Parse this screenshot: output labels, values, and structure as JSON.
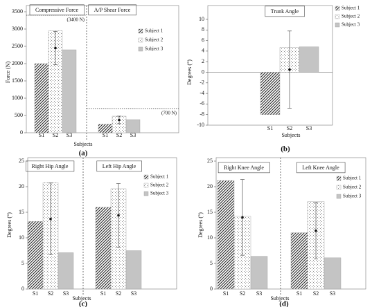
{
  "chart_data": [
    {
      "type": "bar",
      "label": "(a)",
      "y_label": "Force (N)",
      "x_label": "Subjects",
      "ylim": [
        0,
        3500
      ],
      "yticks": [
        0,
        500,
        1000,
        1500,
        2000,
        2500,
        3000,
        3500
      ],
      "legend": [
        {
          "name": "Subject 1",
          "color": "#222222",
          "fill": "hatch"
        },
        {
          "name": "Subject 2",
          "color": "#888888",
          "fill": "dots"
        },
        {
          "name": "Subject 3",
          "color": "#c4c4c4",
          "fill": "solid"
        }
      ],
      "groups": [
        {
          "title": "Compressive Force",
          "categories": [
            "S1",
            "S2",
            "S3"
          ],
          "values": [
            2000,
            2950,
            2400
          ],
          "mean": 2450,
          "error": 480,
          "reference": {
            "value": 3400,
            "label": "(3400 N)"
          }
        },
        {
          "title": "A/P Shear Force",
          "categories": [
            "S1",
            "S2",
            "S3"
          ],
          "values": [
            250,
            480,
            380
          ],
          "mean": 370,
          "error": 110,
          "reference": {
            "value": 700,
            "label": "(700 N)"
          }
        }
      ]
    },
    {
      "type": "bar",
      "label": "(b)",
      "y_label": "Degrees (°)",
      "x_label": "Subjects",
      "ylim": [
        -10,
        10
      ],
      "yticks": [
        -10,
        -8,
        -6,
        -4,
        -2,
        0,
        2,
        4,
        6,
        8,
        10
      ],
      "legend": [
        {
          "name": "Subject 1",
          "color": "#222222",
          "fill": "hatch"
        },
        {
          "name": "Subject 2",
          "color": "#888888",
          "fill": "dots"
        },
        {
          "name": "Subject 3",
          "color": "#c4c4c4",
          "fill": "solid"
        }
      ],
      "groups": [
        {
          "title": "Trunk Angle",
          "categories": [
            "S1",
            "S2",
            "S3"
          ],
          "values": [
            -8,
            4.7,
            4.8
          ],
          "mean": 0.5,
          "error": 7.3
        }
      ]
    },
    {
      "type": "bar",
      "label": "(c)",
      "y_label": "Degrees (°)",
      "x_label": "Subjects",
      "ylim": [
        0,
        25
      ],
      "yticks": [
        0,
        5,
        10,
        15,
        20,
        25
      ],
      "legend": [
        {
          "name": "Subject 1",
          "color": "#222222",
          "fill": "hatch"
        },
        {
          "name": "Subject 2",
          "color": "#888888",
          "fill": "dots"
        },
        {
          "name": "Subject 3",
          "color": "#c4c4c4",
          "fill": "solid"
        }
      ],
      "groups": [
        {
          "title": "Right Hip Angle",
          "categories": [
            "S1",
            "S2",
            "S3"
          ],
          "values": [
            13.2,
            20.8,
            7.1
          ],
          "mean": 13.7,
          "error": 7
        },
        {
          "title": "Left Hip Angle",
          "categories": [
            "S1",
            "S2",
            "S3"
          ],
          "values": [
            16.0,
            19.6,
            7.5
          ],
          "mean": 14.4,
          "error": 6.2
        }
      ]
    },
    {
      "type": "bar",
      "label": "(d)",
      "y_label": "Degrees (°)",
      "x_label": "Subjects",
      "ylim": [
        0,
        25
      ],
      "yticks": [
        0,
        5,
        10,
        15,
        20,
        25
      ],
      "legend": [
        {
          "name": "Subject 1",
          "color": "#222222",
          "fill": "hatch"
        },
        {
          "name": "Subject 2",
          "color": "#888888",
          "fill": "dots"
        },
        {
          "name": "Subject 3",
          "color": "#c4c4c4",
          "fill": "solid"
        }
      ],
      "groups": [
        {
          "title": "Right Knee Angle",
          "categories": [
            "S1",
            "S2",
            "S3"
          ],
          "values": [
            21.2,
            14.2,
            6.4
          ],
          "mean": 14.0,
          "error": 7.4
        },
        {
          "title": "Left Knee Angle",
          "categories": [
            "S1",
            "S2",
            "S3"
          ],
          "values": [
            11.0,
            17.1,
            6.1
          ],
          "mean": 11.4,
          "error": 5.5
        }
      ]
    }
  ]
}
